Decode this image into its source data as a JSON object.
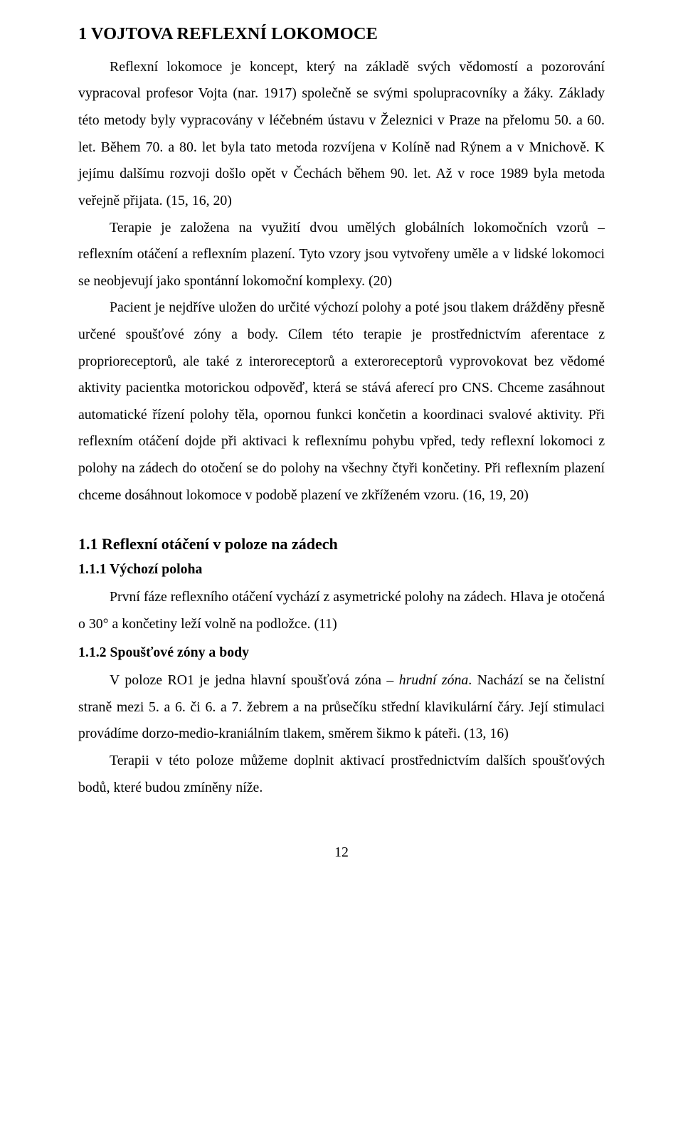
{
  "h1": "1  VOJTOVA REFLEXNÍ LOKOMOCE",
  "p1": "Reflexní lokomoce je koncept, který na základě svých vědomostí a pozorování vypracoval profesor Vojta (nar. 1917) společně se svými spolupracovníky a žáky. Základy této metody byly vypracovány v léčebném ústavu v Železnici v Praze na přelomu 50. a 60. let. Během 70. a 80. let byla tato metoda rozvíjena v Kolíně nad Rýnem a v Mnichově. K jejímu dalšímu rozvoji došlo opět v Čechách během 90. let. Až v roce 1989 byla metoda veřejně přijata. (15, 16, 20)",
  "p2": "Terapie je založena na využití dvou umělých globálních lokomočních vzorů – reflexním otáčení a reflexním plazení. Tyto vzory jsou vytvořeny uměle a v lidské lokomoci se neobjevují jako spontánní lokomoční komplexy. (20)",
  "p3": "Pacient je nejdříve uložen do určité výchozí polohy a poté jsou tlakem drážděny přesně určené spoušťové zóny a body. Cílem této terapie je prostřednictvím aferentace z proprioreceptorů, ale také z interoreceptorů a exteroreceptorů vyprovokovat bez vědomé aktivity pacientka motorickou odpověď, která se stává aferecí pro CNS.  Chceme zasáhnout automatické řízení polohy těla, opornou funkci končetin a koordinaci svalové aktivity. Při reflexním otáčení dojde při aktivaci k reflexnímu pohybu vpřed, tedy reflexní lokomoci z polohy na zádech do otočení se do polohy na všechny čtyři končetiny. Při reflexním plazení chceme dosáhnout lokomoce v podobě plazení ve zkříženém vzoru. (16, 19, 20)",
  "h2": "1.1   Reflexní otáčení v poloze na zádech",
  "h3a": "1.1.1    Výchozí poloha",
  "p4": "První fáze reflexního otáčení vychází z asymetrické polohy na zádech. Hlava je otočená o 30° a končetiny leží volně na podložce. (11)",
  "h3b": "1.1.2    Spoušťové zóny a body",
  "p5a": "V poloze RO1 je jedna hlavní spoušťová zóna – ",
  "p5i": "hrudní zóna",
  "p5b": ". Nachází se na čelistní straně mezi 5. a 6. či 6. a 7. žebrem a na průsečíku střední klavikulární čáry. Její stimulaci provádíme dorzo-medio-kraniálním tlakem, směrem šikmo k páteři. (13, 16)",
  "p6": "Terapii v této poloze můžeme doplnit  aktivací prostřednictvím dalších spoušťových bodů, které budou zmíněny níže.",
  "pagenum": "12"
}
